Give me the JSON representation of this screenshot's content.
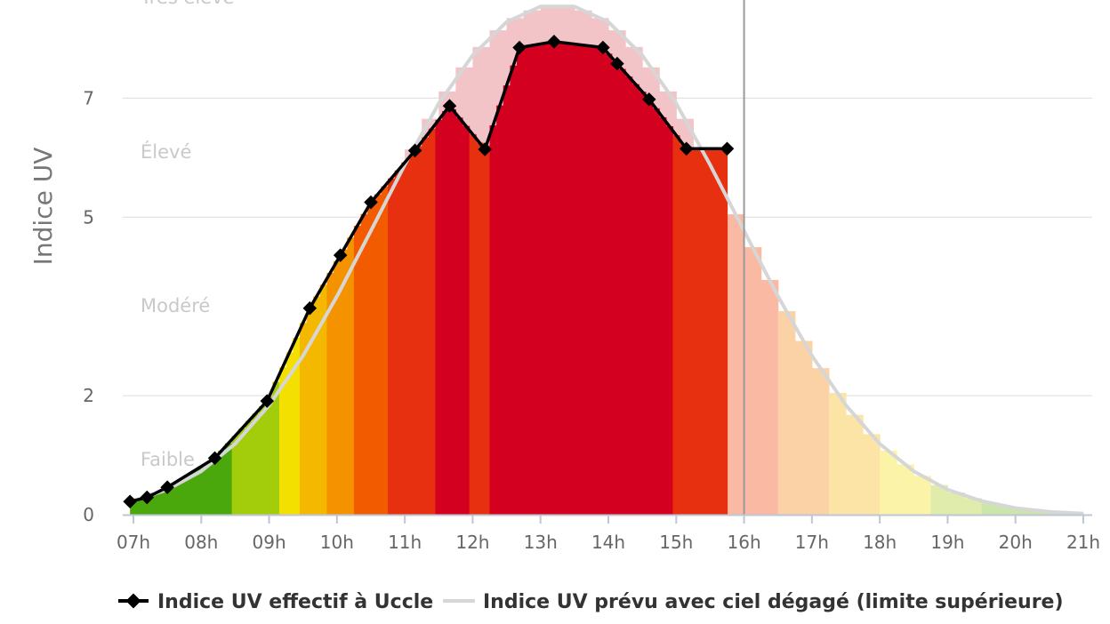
{
  "chart_data": {
    "type": "area",
    "ylabel": "Indice UV",
    "ylim": [
      0,
      8.5
    ],
    "y_ticks": [
      "0",
      "2",
      "5",
      "7"
    ],
    "x_ticks": [
      "07h",
      "08h",
      "09h",
      "10h",
      "11h",
      "12h",
      "13h",
      "14h",
      "15h",
      "16h",
      "17h",
      "18h",
      "19h",
      "20h",
      "21h"
    ],
    "risk_bands": [
      "Faible",
      "Modéré",
      "Élevé",
      "Très élevé"
    ],
    "current_time": 16.0,
    "legend": {
      "measured": "Indice UV effectif à Uccle",
      "forecast": "Indice UV prévu avec ciel dégagé (limite supérieure)"
    },
    "series": [
      {
        "name": "Indice UV effectif à Uccle",
        "color": "#000000",
        "x": [
          6.95,
          7.2,
          7.5,
          8.2,
          8.97,
          9.6,
          10.05,
          10.5,
          11.15,
          11.66,
          12.18,
          12.69,
          13.2,
          13.92,
          14.13,
          14.6,
          15.15,
          15.75
        ],
        "y": [
          0.22,
          0.29,
          0.46,
          0.95,
          1.91,
          3.47,
          4.36,
          5.25,
          6.12,
          6.87,
          6.14,
          7.85,
          7.95,
          7.85,
          7.58,
          6.98,
          6.15,
          6.15
        ]
      },
      {
        "name": "Indice UV prévu avec ciel dégagé (limite supérieure)",
        "color": "#d6d6d6",
        "x": [
          7,
          7.5,
          8,
          8.5,
          9,
          9.5,
          10,
          10.5,
          11,
          11.5,
          12,
          12.5,
          13,
          13.5,
          14,
          14.5,
          15,
          15.5,
          16,
          16.5,
          17,
          17.5,
          18,
          18.5,
          19,
          19.5,
          20,
          20.5,
          21
        ],
        "y": [
          0.23,
          0.42,
          0.73,
          1.19,
          1.84,
          2.67,
          3.67,
          4.77,
          5.88,
          6.91,
          7.72,
          8.28,
          8.54,
          8.54,
          8.28,
          7.72,
          6.91,
          5.88,
          4.77,
          3.67,
          2.67,
          1.84,
          1.19,
          0.73,
          0.42,
          0.23,
          0.11,
          0.05,
          0.02
        ]
      }
    ],
    "bar_colors": {
      "measured": [
        "#4aa80c",
        "#a3cd0b",
        "#f4e000",
        "#f5b800",
        "#f59200",
        "#f25b00",
        "#e6300f",
        "#d4001f"
      ],
      "forecast": [
        "#d4001f",
        "#e6300f",
        "#f9b9a3",
        "#fbd2a6",
        "#fbe4a6",
        "#fbf4a8",
        "#e0ecab",
        "#cae6ab"
      ]
    }
  }
}
